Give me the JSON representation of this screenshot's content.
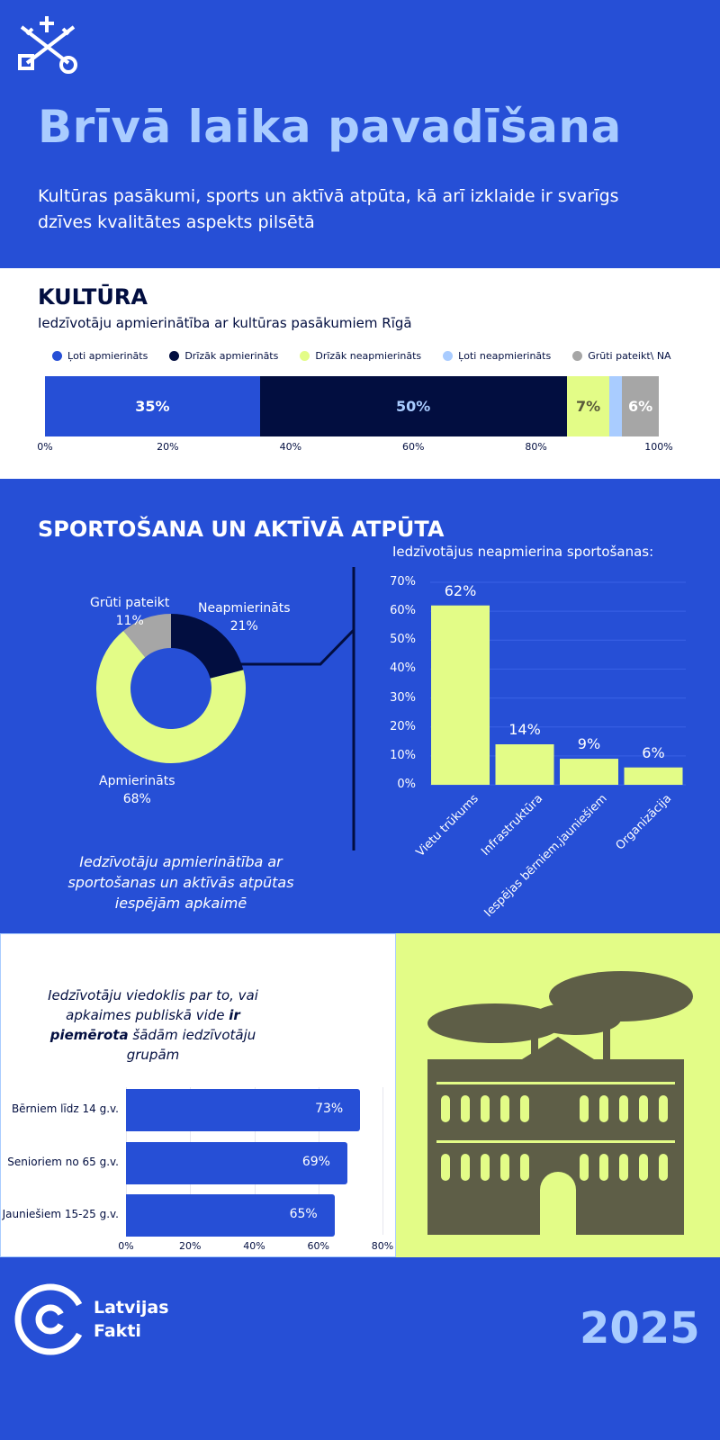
{
  "header": {
    "title": "Brīvā laika pavadīšana",
    "subtitle": "Kultūras pasākumi, sports un aktīvā atpūta, kā arī izklaide ir svarīgs dzīves kvalitātes aspekts pilsētā"
  },
  "colors": {
    "blue": "#264FD6",
    "navy": "#020E40",
    "yellow": "#E3FC87",
    "light_blue": "#A9CCFF",
    "grey": "#A6A6A6"
  },
  "footer": {
    "logo_line1": "Latvijas",
    "logo_line2": "Fakti",
    "year": "2025"
  },
  "chart_data": [
    {
      "type": "bar",
      "stacked": true,
      "orientation": "horizontal",
      "section_title": "KULTŪRA",
      "title": "Iedzīvotāju apmierinātība ar kultūras pasākumiem Rīgā",
      "series": [
        {
          "name": "Ļoti apmierināts",
          "value": 35,
          "label": "35%",
          "color": "#264FD6",
          "text_color": "#ffffff"
        },
        {
          "name": "Drīzāk apmierināts",
          "value": 50,
          "label": "50%",
          "color": "#020E40",
          "text_color": "#A9CCFF"
        },
        {
          "name": "Drīzāk neapmierināts",
          "value": 7,
          "label": "7%",
          "color": "#E3FC87",
          "text_color": "#5a5a3a"
        },
        {
          "name": "Ļoti neapmierināts",
          "value": 2,
          "label": "",
          "color": "#A9CCFF",
          "text_color": "#ffffff"
        },
        {
          "name": "Grūti pateikt\\ NA",
          "value": 6,
          "label": "6%",
          "color": "#A6A6A6",
          "text_color": "#ffffff"
        }
      ],
      "xticks": [
        "0%",
        "20%",
        "40%",
        "60%",
        "80%",
        "100%"
      ],
      "xlim": [
        0,
        100
      ],
      "legend": "top"
    },
    {
      "type": "pie",
      "donut": true,
      "section_title": "SPORTOŠANA UN AKTĪVĀ ATPŪTA",
      "caption": "Iedzīvotāju apmierinātība ar sportošanas un aktīvās atpūtas iespējām apkaimē",
      "slices": [
        {
          "name": "Neapmierināts",
          "value": 21,
          "label": "21%",
          "color": "#020E40"
        },
        {
          "name": "Apmierināts",
          "value": 68,
          "label": "68%",
          "color": "#E3FC87"
        },
        {
          "name": "Grūti pateikt",
          "value": 11,
          "label": "11%",
          "color": "#A6A6A6"
        }
      ]
    },
    {
      "type": "bar",
      "title": "Iedzīvotājus neapmierina sportošanas:",
      "categories": [
        "Vietu trūkums",
        "Infrastruktūra",
        "Iespējas bērniem,jauniešiem",
        "Organizācija"
      ],
      "values": [
        62,
        14,
        9,
        6
      ],
      "labels": [
        "62%",
        "14%",
        "9%",
        "6%"
      ],
      "yticks": [
        "0%",
        "10%",
        "20%",
        "30%",
        "40%",
        "50%",
        "60%",
        "70%"
      ],
      "ylim": [
        0,
        70
      ],
      "grid": true
    },
    {
      "type": "bar",
      "orientation": "horizontal",
      "title_parts": [
        "Iedzīvotāju viedoklis par to, vai apkaimes publiskā vide ",
        "ir piemērota",
        " šādām iedzīvotāju grupām"
      ],
      "categories": [
        "Bērniem līdz 14 g.v.",
        "Senioriem no 65 g.v.",
        "Jauniešiem 15-25 g.v."
      ],
      "values": [
        73,
        69,
        65
      ],
      "labels": [
        "73%",
        "69%",
        "65%"
      ],
      "xticks": [
        "0%",
        "20%",
        "40%",
        "60%",
        "80%"
      ],
      "xlim": [
        0,
        80
      ],
      "grid": true
    }
  ]
}
